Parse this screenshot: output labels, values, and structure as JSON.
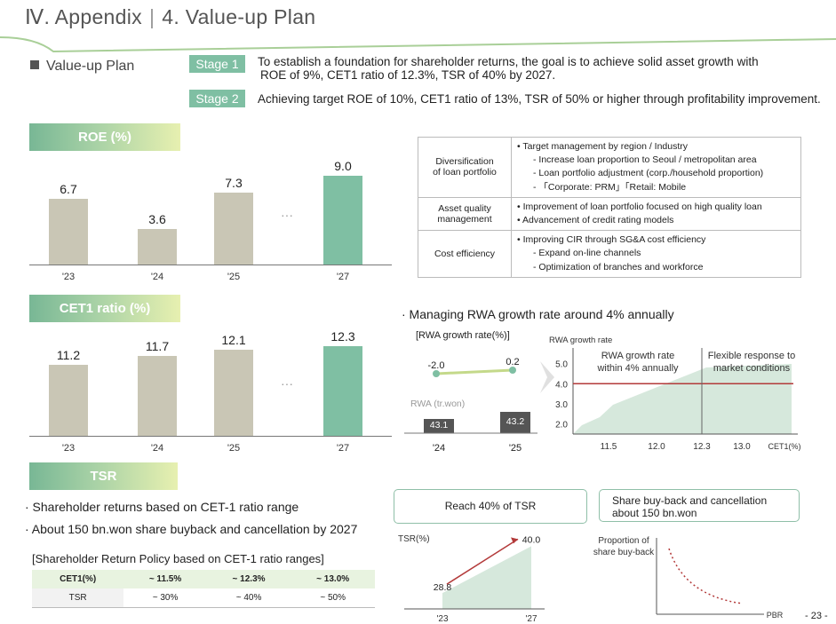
{
  "header": {
    "section": "Ⅳ. Appendix",
    "page_title": "4. Value-up Plan",
    "page_number": "- 23 -"
  },
  "plan": {
    "label": "Value-up Plan",
    "stages": [
      {
        "badge": "Stage 1",
        "text_line1": "To establish a foundation for shareholder returns, the goal is to achieve solid asset growth with",
        "text_line2": "ROE of 9%, CET1 ratio of 12.3%, TSR of 40% by 2027."
      },
      {
        "badge": "Stage 2",
        "text_line1": "Achieving target ROE of 10%, CET1 ratio of 13%, TSR of 50% or higher through profitability improvement.",
        "text_line2": ""
      }
    ]
  },
  "roe": {
    "title": "ROE (%)",
    "ellipsis": "···"
  },
  "cet1": {
    "title": "CET1  ratio (%)",
    "ellipsis": "···"
  },
  "tsr": {
    "title": "TSR"
  },
  "chart_data": [
    {
      "type": "bar",
      "title": "ROE (%)",
      "categories": [
        "'23",
        "'24",
        "'25",
        "'27"
      ],
      "values": [
        6.7,
        3.6,
        7.3,
        9.0
      ],
      "value_labels": [
        "6.7",
        "3.6",
        "7.3",
        "9.0"
      ],
      "highlight_index": 3
    },
    {
      "type": "bar",
      "title": "CET1 ratio (%)",
      "categories": [
        "'23",
        "'24",
        "'25",
        "'27"
      ],
      "values": [
        11.2,
        11.7,
        12.1,
        12.3
      ],
      "value_labels": [
        "11.2",
        "11.7",
        "12.1",
        "12.3"
      ],
      "highlight_index": 3
    },
    {
      "type": "line",
      "title": "[RWA growth rate(%)]",
      "categories": [
        "'24",
        "'25"
      ],
      "values": [
        -2.0,
        0.2
      ],
      "value_labels": [
        "-2.0",
        "0.2"
      ],
      "bars": {
        "label": "RWA (tr.won)",
        "values": [
          43.1,
          43.2
        ],
        "value_labels": [
          "43.1",
          "43.2"
        ]
      }
    },
    {
      "type": "area",
      "ylabel": "RWA growth rate",
      "xlabel": "CET1(%)",
      "x_ticks": [
        "11.5",
        "12.0",
        "12.3",
        "13.0"
      ],
      "y_ticks": [
        "5.0",
        "4.0",
        "3.0",
        "2.0"
      ],
      "reference_line": 4.0,
      "divider_x": 12.3,
      "zones": [
        "RWA growth rate within 4% annually",
        "Flexible response to market conditions"
      ]
    },
    {
      "type": "area",
      "ylabel": "TSR(%)",
      "categories": [
        "'23",
        "'27"
      ],
      "values": [
        28.8,
        40.0
      ],
      "value_labels": [
        "28.8",
        "40.0"
      ]
    },
    {
      "type": "line",
      "ylabel": "Proportion of share buy-back",
      "xlabel": "PBR",
      "trend": "decreasing"
    }
  ],
  "strategies": [
    {
      "category_l1": "Diversification",
      "category_l2": "of loan portfolio",
      "items": [
        "• Target management by region / Industry",
        "- Increase loan proportion to Seoul / metropolitan area",
        "- Loan portfolio adjustment (corp./household proportion)",
        "- 「Corporate: PRM」「Retail: Mobile"
      ]
    },
    {
      "category_l1": "Asset quality",
      "category_l2": "management",
      "items": [
        "• Improvement of loan portfolio focused on high quality loan",
        "• Advancement of credit rating models"
      ]
    },
    {
      "category_l1": "Cost efficiency",
      "category_l2": "",
      "items": [
        "• Improving CIR through SG&A cost efficiency",
        "- Expand on-line channels",
        "- Optimization of branches and workforce"
      ]
    }
  ],
  "rwa": {
    "heading": "·  Managing RWA growth rate around 4% annually",
    "chart_title": "[RWA growth rate(%)]",
    "bar_label": "RWA (tr.won)"
  },
  "tsr_notes": [
    "· Shareholder returns based on CET-1 ratio range",
    "· About 150 bn.won share buyback and cancellation by 2027"
  ],
  "policy": {
    "title": "[Shareholder Return Policy based on CET-1 ratio ranges]",
    "header": [
      "CET1(%)",
      "~ 11.5%",
      "~ 12.3%",
      "~ 13.0%"
    ],
    "row": [
      "TSR",
      "~ 30%",
      "~ 40%",
      "~ 50%"
    ]
  },
  "tsr_box": {
    "label": "Reach 40% of TSR"
  },
  "buyback_box": {
    "label_l1": "Share buy-back and cancellation",
    "label_l2": "about 150 bn.won"
  },
  "colors": {
    "accent_green": "#7fbfa3",
    "bar_gray": "#c9c6b5",
    "bar_green": "#7fbfa3",
    "red": "#b33a3a",
    "area_green": "#d6e8dc"
  }
}
